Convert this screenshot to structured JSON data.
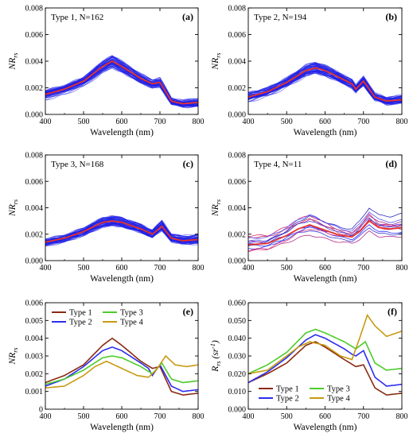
{
  "colors": {
    "spectra": "#1f1fe6",
    "spectra_type4": [
      "#1a1aff",
      "#d0206a",
      "#2a2ad8",
      "#a0208a",
      "#3030ff",
      "#c01e50",
      "#4040e0",
      "#b02080",
      "#2020c0",
      "#e03070",
      "#5050ff"
    ],
    "mean": "#e8322c",
    "type1": "#8b2a12",
    "type2": "#2d2df0",
    "type3": "#4ccc2a",
    "type4": "#c79a12"
  },
  "chart_data": [
    {
      "type": "line",
      "panel": "(a)",
      "annotation": "Type 1, N=162",
      "xlabel": "Wavelength (nm)",
      "ylabel_main": "NR",
      "ylabel_sub": "rs",
      "xlim": [
        400,
        800
      ],
      "ylim": [
        0,
        0.008
      ],
      "xticks": [
        "400",
        "500",
        "600",
        "700",
        "800"
      ],
      "yticks": [
        "0.000",
        "0.002",
        "0.004",
        "0.006",
        "0.008"
      ],
      "spectra_count": 162,
      "x": [
        400,
        450,
        500,
        550,
        575,
        600,
        650,
        680,
        700,
        730,
        760,
        800
      ],
      "mean": [
        0.0015,
        0.0019,
        0.0025,
        0.0036,
        0.004,
        0.0036,
        0.0027,
        0.0023,
        0.0024,
        0.001,
        0.0008,
        0.0009
      ]
    },
    {
      "type": "line",
      "panel": "(b)",
      "annotation": "Type 2, N=194",
      "xlabel": "Wavelength (nm)",
      "ylabel_main": "NR",
      "ylabel_sub": "rs",
      "xlim": [
        400,
        800
      ],
      "ylim": [
        0,
        0.008
      ],
      "xticks": [
        "400",
        "500",
        "600",
        "700",
        "800"
      ],
      "yticks": [
        "0.000",
        "0.002",
        "0.004",
        "0.006",
        "0.008"
      ],
      "spectra_count": 194,
      "x": [
        400,
        450,
        500,
        550,
        575,
        600,
        650,
        670,
        680,
        700,
        730,
        760,
        800
      ],
      "mean": [
        0.0013,
        0.0017,
        0.0024,
        0.0033,
        0.0035,
        0.0033,
        0.0026,
        0.0023,
        0.0019,
        0.0025,
        0.0013,
        0.001,
        0.0011
      ]
    },
    {
      "type": "line",
      "panel": "(c)",
      "annotation": "Type 3, N=168",
      "xlabel": "Wavelength (nm)",
      "ylabel_main": "NR",
      "ylabel_sub": "rs",
      "xlim": [
        400,
        800
      ],
      "ylim": [
        0,
        0.008
      ],
      "xticks": [
        "400",
        "500",
        "600",
        "700",
        "800"
      ],
      "yticks": [
        "0.000",
        "0.002",
        "0.004",
        "0.006",
        "0.008"
      ],
      "spectra_count": 168,
      "x": [
        400,
        450,
        500,
        550,
        575,
        600,
        650,
        680,
        705,
        730,
        760,
        800
      ],
      "mean": [
        0.0014,
        0.0017,
        0.0022,
        0.0029,
        0.003,
        0.0029,
        0.0024,
        0.002,
        0.0026,
        0.0017,
        0.0015,
        0.0016
      ]
    },
    {
      "type": "line",
      "panel": "(d)",
      "annotation": "Type 4, N=11",
      "xlabel": "Wavelength (nm)",
      "ylabel_main": "NR",
      "ylabel_sub": "rs",
      "xlim": [
        400,
        800
      ],
      "ylim": [
        0,
        0.008
      ],
      "xticks": [
        "400",
        "500",
        "600",
        "700",
        "800"
      ],
      "yticks": [
        "0.000",
        "0.002",
        "0.004",
        "0.006",
        "0.008"
      ],
      "spectra_count": 11,
      "x": [
        400,
        450,
        500,
        530,
        560,
        600,
        640,
        670,
        690,
        715,
        740,
        770,
        800
      ],
      "mean": [
        0.0012,
        0.0013,
        0.0019,
        0.0024,
        0.0027,
        0.0023,
        0.0019,
        0.0018,
        0.0022,
        0.003,
        0.0025,
        0.0024,
        0.0025
      ]
    },
    {
      "type": "line",
      "panel": "(e)",
      "xlabel": "Wavelength (nm)",
      "ylabel_main": "NR",
      "ylabel_sub": "rs",
      "xlim": [
        400,
        800
      ],
      "ylim": [
        0,
        0.006
      ],
      "xticks": [
        "400",
        "500",
        "600",
        "700",
        "800"
      ],
      "yticks": [
        "0",
        "0.001",
        "0.002",
        "0.003",
        "0.004",
        "0.005",
        "0.006"
      ],
      "legend": "top-left",
      "series": [
        {
          "name": "Type 1",
          "x": [
            400,
            450,
            500,
            550,
            575,
            600,
            650,
            680,
            700,
            730,
            760,
            800
          ],
          "values": [
            0.0015,
            0.0019,
            0.0025,
            0.0036,
            0.004,
            0.0036,
            0.0027,
            0.0023,
            0.0024,
            0.001,
            0.0008,
            0.0009
          ]
        },
        {
          "name": "Type 2",
          "x": [
            400,
            450,
            500,
            550,
            575,
            600,
            650,
            670,
            680,
            700,
            730,
            760,
            800
          ],
          "values": [
            0.0013,
            0.0017,
            0.0024,
            0.0033,
            0.0035,
            0.0033,
            0.0026,
            0.0023,
            0.0019,
            0.0025,
            0.0013,
            0.001,
            0.0011
          ]
        },
        {
          "name": "Type 3",
          "x": [
            400,
            450,
            500,
            550,
            575,
            600,
            650,
            680,
            705,
            730,
            760,
            800
          ],
          "values": [
            0.0014,
            0.0017,
            0.0022,
            0.0029,
            0.003,
            0.0029,
            0.0024,
            0.002,
            0.0026,
            0.0017,
            0.0015,
            0.0016
          ]
        },
        {
          "name": "Type 4",
          "x": [
            400,
            450,
            500,
            530,
            560,
            600,
            640,
            670,
            690,
            715,
            740,
            770,
            800
          ],
          "values": [
            0.0012,
            0.0013,
            0.0019,
            0.0024,
            0.0027,
            0.0023,
            0.0019,
            0.0018,
            0.0022,
            0.003,
            0.0025,
            0.0024,
            0.0025
          ]
        }
      ]
    },
    {
      "type": "line",
      "panel": "(f)",
      "xlabel": "Wavelength (nm)",
      "ylabel_main": "R",
      "ylabel_sub": "rs",
      "ylabel_unit": "(sr",
      "ylabel_unit_sup": "-1",
      "ylabel_unit_end": ")",
      "xlim": [
        400,
        800
      ],
      "ylim": [
        0,
        0.06
      ],
      "xticks": [
        "400",
        "500",
        "600",
        "700",
        "800"
      ],
      "yticks": [
        "0.000",
        "0.010",
        "0.020",
        "0.030",
        "0.040",
        "0.050",
        "0.060"
      ],
      "legend": "bottom-center",
      "series": [
        {
          "name": "Type 1",
          "x": [
            400,
            450,
            500,
            550,
            575,
            600,
            650,
            680,
            700,
            730,
            760,
            800
          ],
          "values": [
            0.015,
            0.02,
            0.026,
            0.036,
            0.038,
            0.035,
            0.028,
            0.024,
            0.025,
            0.012,
            0.008,
            0.009
          ]
        },
        {
          "name": "Type 2",
          "x": [
            400,
            450,
            500,
            550,
            575,
            600,
            650,
            670,
            680,
            700,
            730,
            760,
            800
          ],
          "values": [
            0.015,
            0.021,
            0.029,
            0.039,
            0.042,
            0.04,
            0.034,
            0.031,
            0.03,
            0.033,
            0.018,
            0.013,
            0.014
          ]
        },
        {
          "name": "Type 3",
          "x": [
            400,
            450,
            500,
            550,
            575,
            600,
            650,
            680,
            705,
            730,
            760,
            800
          ],
          "values": [
            0.02,
            0.025,
            0.032,
            0.043,
            0.045,
            0.043,
            0.038,
            0.034,
            0.038,
            0.026,
            0.022,
            0.023
          ]
        },
        {
          "name": "Type 4",
          "x": [
            400,
            450,
            500,
            530,
            560,
            600,
            640,
            670,
            690,
            710,
            730,
            760,
            800
          ],
          "values": [
            0.02,
            0.022,
            0.03,
            0.035,
            0.038,
            0.036,
            0.03,
            0.028,
            0.04,
            0.053,
            0.047,
            0.041,
            0.044
          ]
        }
      ]
    }
  ]
}
